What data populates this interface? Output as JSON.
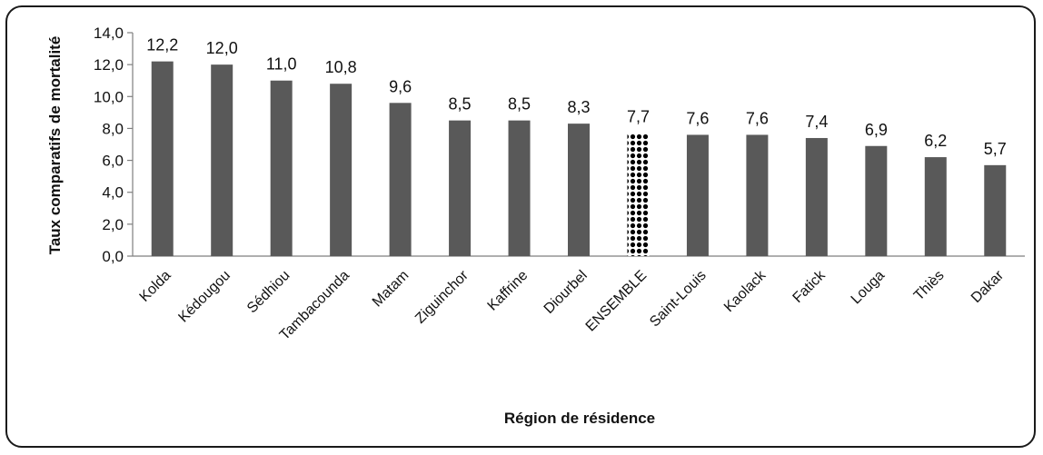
{
  "chart_data": {
    "type": "bar",
    "ylabel": "Taux comparatifs de mortalité",
    "xlabel": "Région de résidence",
    "ylim": [
      0,
      14
    ],
    "yticks": [
      "0,0",
      "2,0",
      "4,0",
      "6,0",
      "8,0",
      "10,0",
      "12,0",
      "14,0"
    ],
    "grid": false,
    "legend": "none",
    "categories": [
      "Kolda",
      "Kédougou",
      "Sédhiou",
      "Tambacounda",
      "Matam",
      "Ziguinchor",
      "Kaffrine",
      "Diourbel",
      "ENSEMBLE",
      "Saint-Louis",
      "Kaolack",
      "Fatick",
      "Louga",
      "Thiès",
      "Dakar"
    ],
    "values": [
      12.2,
      12.0,
      11.0,
      10.8,
      9.6,
      8.5,
      8.5,
      8.3,
      7.7,
      7.6,
      7.6,
      7.4,
      6.9,
      6.2,
      5.7
    ],
    "value_labels": [
      "12,2",
      "12,0",
      "11,0",
      "10,8",
      "9,6",
      "8,5",
      "8,5",
      "8,3",
      "7,7",
      "7,6",
      "7,6",
      "7,4",
      "6,9",
      "6,2",
      "5,7"
    ],
    "highlight_category": "ENSEMBLE",
    "colors": {
      "bar": "#595959",
      "highlight": "#000000",
      "axis": "#7f7f7f"
    }
  }
}
